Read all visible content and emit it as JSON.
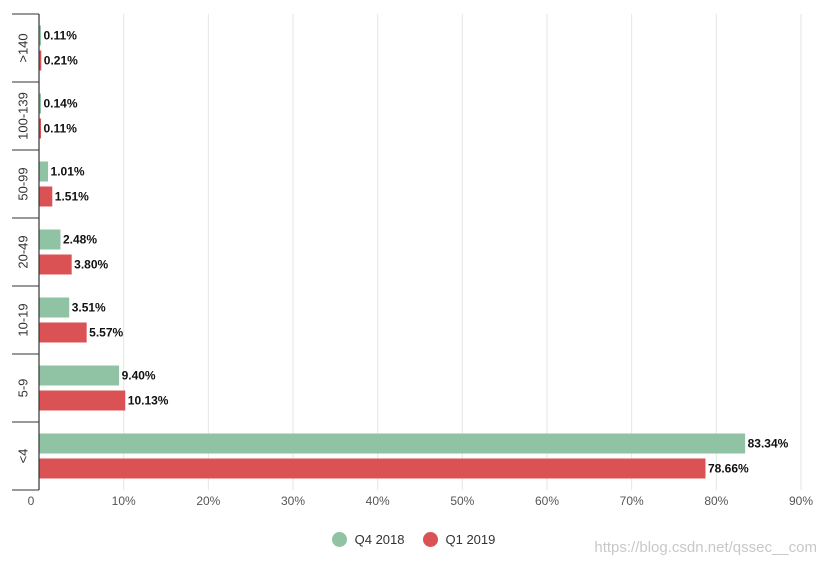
{
  "chart_data": {
    "type": "bar",
    "orientation": "horizontal",
    "categories": [
      ">140",
      "100-139",
      "50-99",
      "20-49",
      "10-19",
      "5-9",
      "<4"
    ],
    "series": [
      {
        "name": "Q4 2018",
        "color": "#8fc3a4",
        "values": [
          0.11,
          0.14,
          1.01,
          2.48,
          3.51,
          9.4,
          83.34
        ],
        "labels": [
          "0.11%",
          "0.14%",
          "1.01%",
          "2.48%",
          "3.51%",
          "9.40%",
          "83.34%"
        ]
      },
      {
        "name": "Q1 2019",
        "color": "#db5255",
        "values": [
          0.21,
          0.11,
          1.51,
          3.8,
          5.57,
          10.13,
          78.66
        ],
        "labels": [
          "0.21%",
          "0.11%",
          "1.51%",
          "3.80%",
          "5.57%",
          "10.13%",
          "78.66%"
        ]
      }
    ],
    "xlim": [
      0,
      90
    ],
    "xticks": [
      0,
      10,
      20,
      30,
      40,
      50,
      60,
      70,
      80,
      90
    ],
    "xtick_labels": [
      "0",
      "10%",
      "20%",
      "30%",
      "40%",
      "50%",
      "60%",
      "70%",
      "80%",
      "90%"
    ],
    "grid": true,
    "legend_position": "bottom-center"
  },
  "watermark": "https://blog.csdn.net/qssec__com"
}
